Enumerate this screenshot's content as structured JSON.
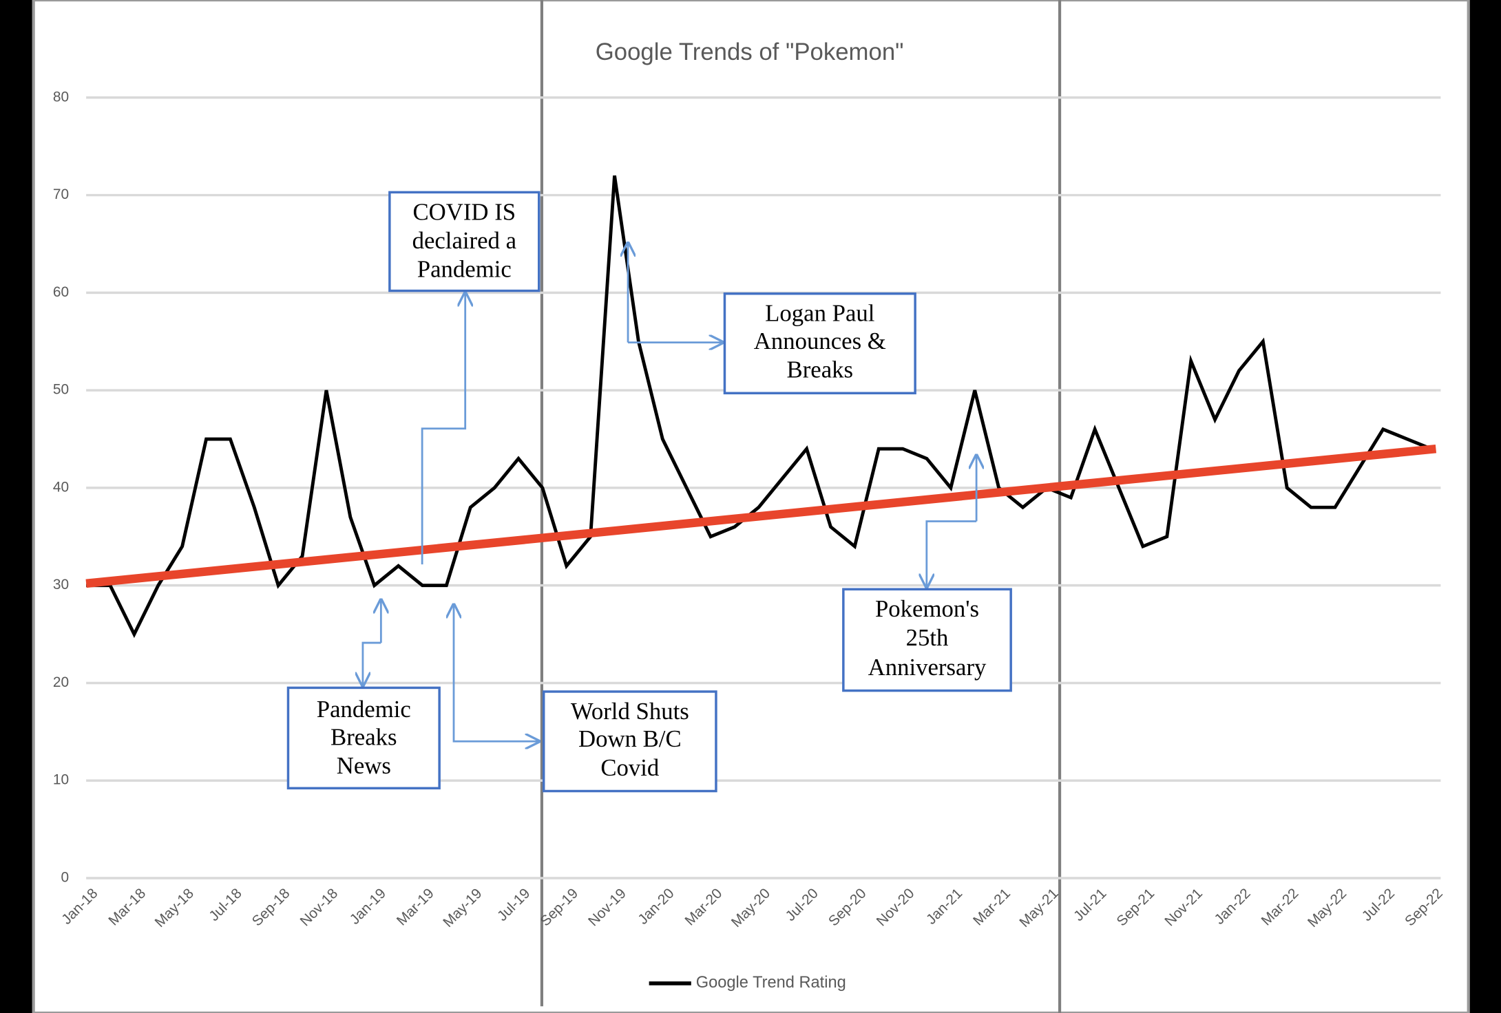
{
  "chart_data": {
    "type": "line",
    "title": "Google Trends of \"Pokemon\"",
    "categories": [
      "Jan-18",
      null,
      "Mar-18",
      null,
      "May-18",
      null,
      "Jul-18",
      null,
      "Sep-18",
      null,
      "Nov-18",
      null,
      "Jan-19",
      null,
      "Mar-19",
      null,
      "May-19",
      null,
      "Jul-19",
      null,
      "Sep-19",
      null,
      "Nov-19",
      null,
      "Jan-20",
      null,
      "Mar-20",
      null,
      "May-20",
      null,
      "Jul-20",
      null,
      "Sep-20",
      null,
      "Nov-20",
      null,
      "Jan-21",
      null,
      "Mar-21",
      null,
      "May-21",
      null,
      "Jul-21",
      null,
      "Sep-21",
      null,
      "Nov-21",
      null,
      "Jan-22",
      null,
      "Mar-22",
      null,
      "May-22",
      null,
      "Jul-22",
      null,
      "Sep-22"
    ],
    "series": [
      {
        "name": "Google Trend Rating",
        "color": "#000000",
        "values": [
          30,
          30,
          25,
          30,
          34,
          45,
          45,
          38,
          30,
          33,
          50,
          37,
          30,
          32,
          30,
          30,
          38,
          40,
          43,
          40,
          32,
          35,
          72,
          55,
          45,
          40,
          35,
          36,
          38,
          41,
          44,
          36,
          34,
          44,
          44,
          43,
          40,
          50,
          40,
          38,
          40,
          39,
          46,
          40,
          34,
          35,
          53,
          47,
          52,
          55,
          40,
          38,
          38,
          42,
          46,
          45,
          44
        ]
      }
    ],
    "trend": {
      "color": "#e8452b",
      "start": 30.2,
      "end": 44
    },
    "ylim": [
      0,
      80
    ],
    "yticks": [
      0,
      10,
      20,
      30,
      40,
      50,
      60,
      70,
      80
    ],
    "grid": true,
    "legend": "bottom",
    "annotations": [
      {
        "lines": [
          "COVID IS",
          "declaired  a",
          "Pandemic"
        ]
      },
      {
        "lines": [
          "Logan Paul",
          "Announces &",
          "Breaks"
        ]
      },
      {
        "lines": [
          "Pokemon's",
          "25th",
          "Anniversary"
        ]
      },
      {
        "lines": [
          "Pandemic",
          "Breaks",
          "News"
        ]
      },
      {
        "lines": [
          "World Shuts",
          "Down B/C",
          "Covid"
        ]
      }
    ]
  }
}
